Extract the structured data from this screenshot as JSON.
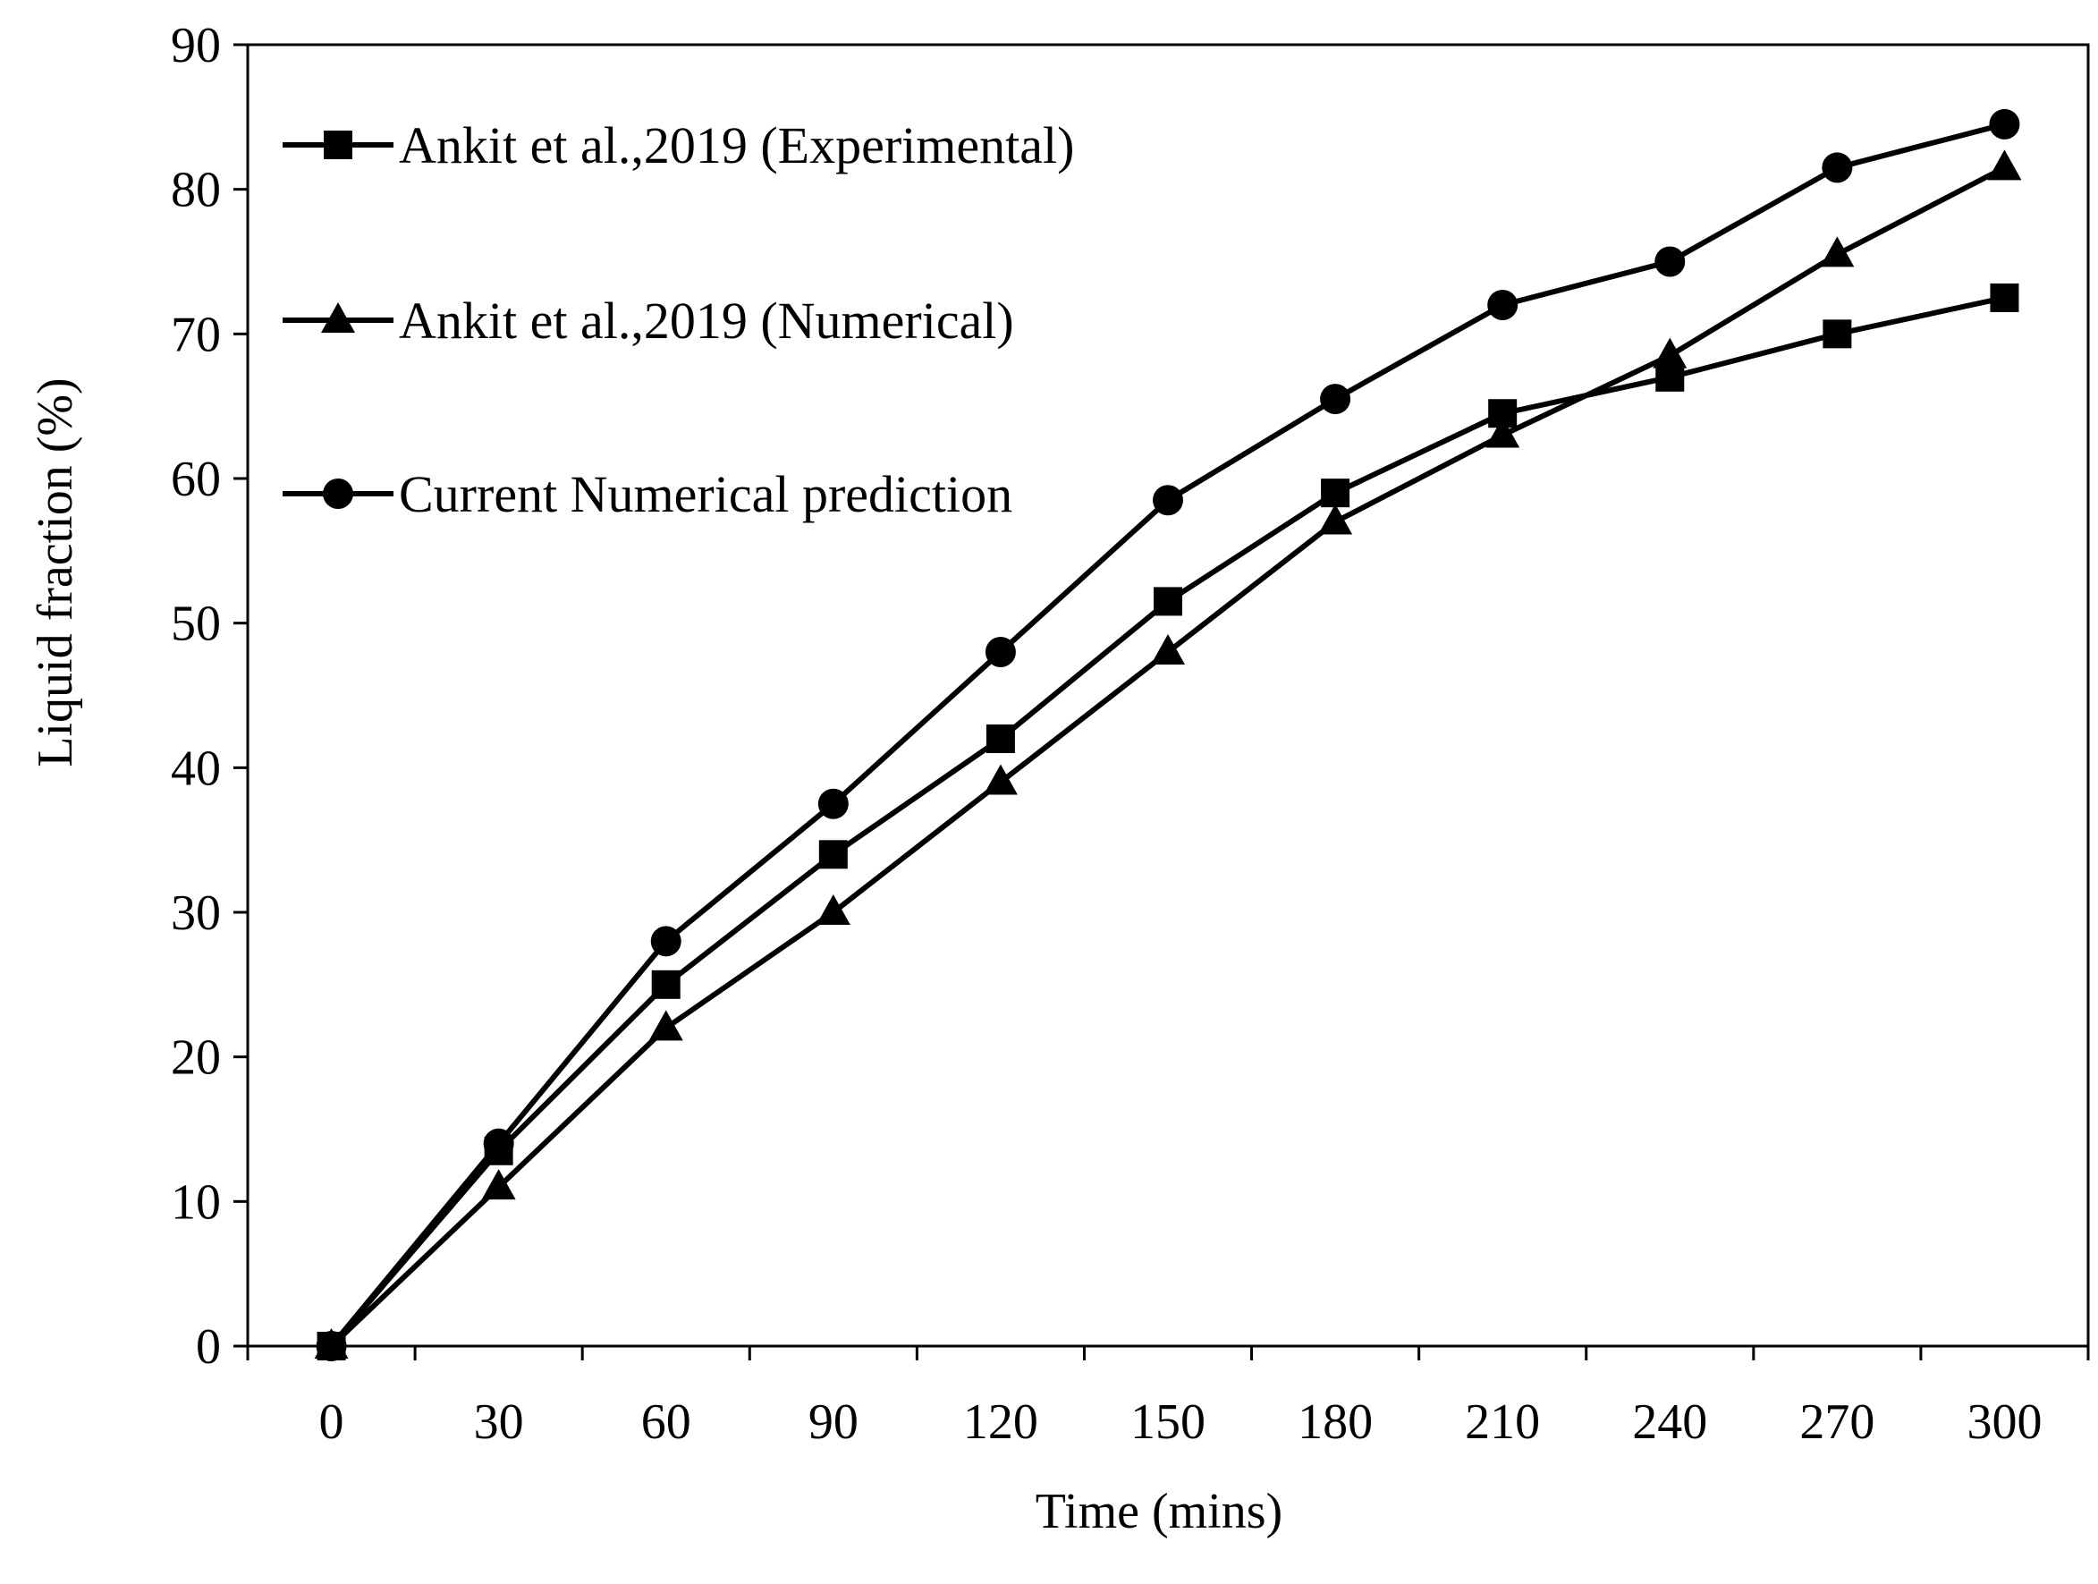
{
  "chart_data": {
    "type": "line",
    "title": "",
    "xlabel": "Time (mins)",
    "ylabel": "Liquid fraction  (%)",
    "x": [
      0,
      30,
      60,
      90,
      120,
      150,
      180,
      210,
      240,
      270,
      300
    ],
    "x_tick_labels": [
      "0",
      "30",
      "60",
      "90",
      "120",
      "150",
      "180",
      "210",
      "240",
      "270",
      "300"
    ],
    "y_tick_labels": [
      "0",
      "10",
      "20",
      "30",
      "40",
      "50",
      "60",
      "70",
      "80",
      "90"
    ],
    "xlim": [
      -15,
      315
    ],
    "ylim": [
      0,
      90
    ],
    "grid": false,
    "legend_position": "top-left",
    "series": [
      {
        "name": "Ankit et al.,2019 (Experimental)",
        "marker": "square",
        "values": [
          0,
          13.5,
          25,
          34,
          42,
          51.5,
          59,
          64.5,
          67,
          70,
          72.5
        ]
      },
      {
        "name": "Ankit et al.,2019 (Numerical)",
        "marker": "triangle",
        "values": [
          0,
          11,
          22,
          30,
          39,
          48,
          57,
          63,
          68.5,
          75.5,
          81.5
        ]
      },
      {
        "name": "Current Numerical prediction",
        "marker": "circle",
        "values": [
          0,
          14,
          28,
          37.5,
          48,
          58.5,
          65.5,
          72,
          75,
          81.5,
          84.5
        ]
      }
    ]
  }
}
